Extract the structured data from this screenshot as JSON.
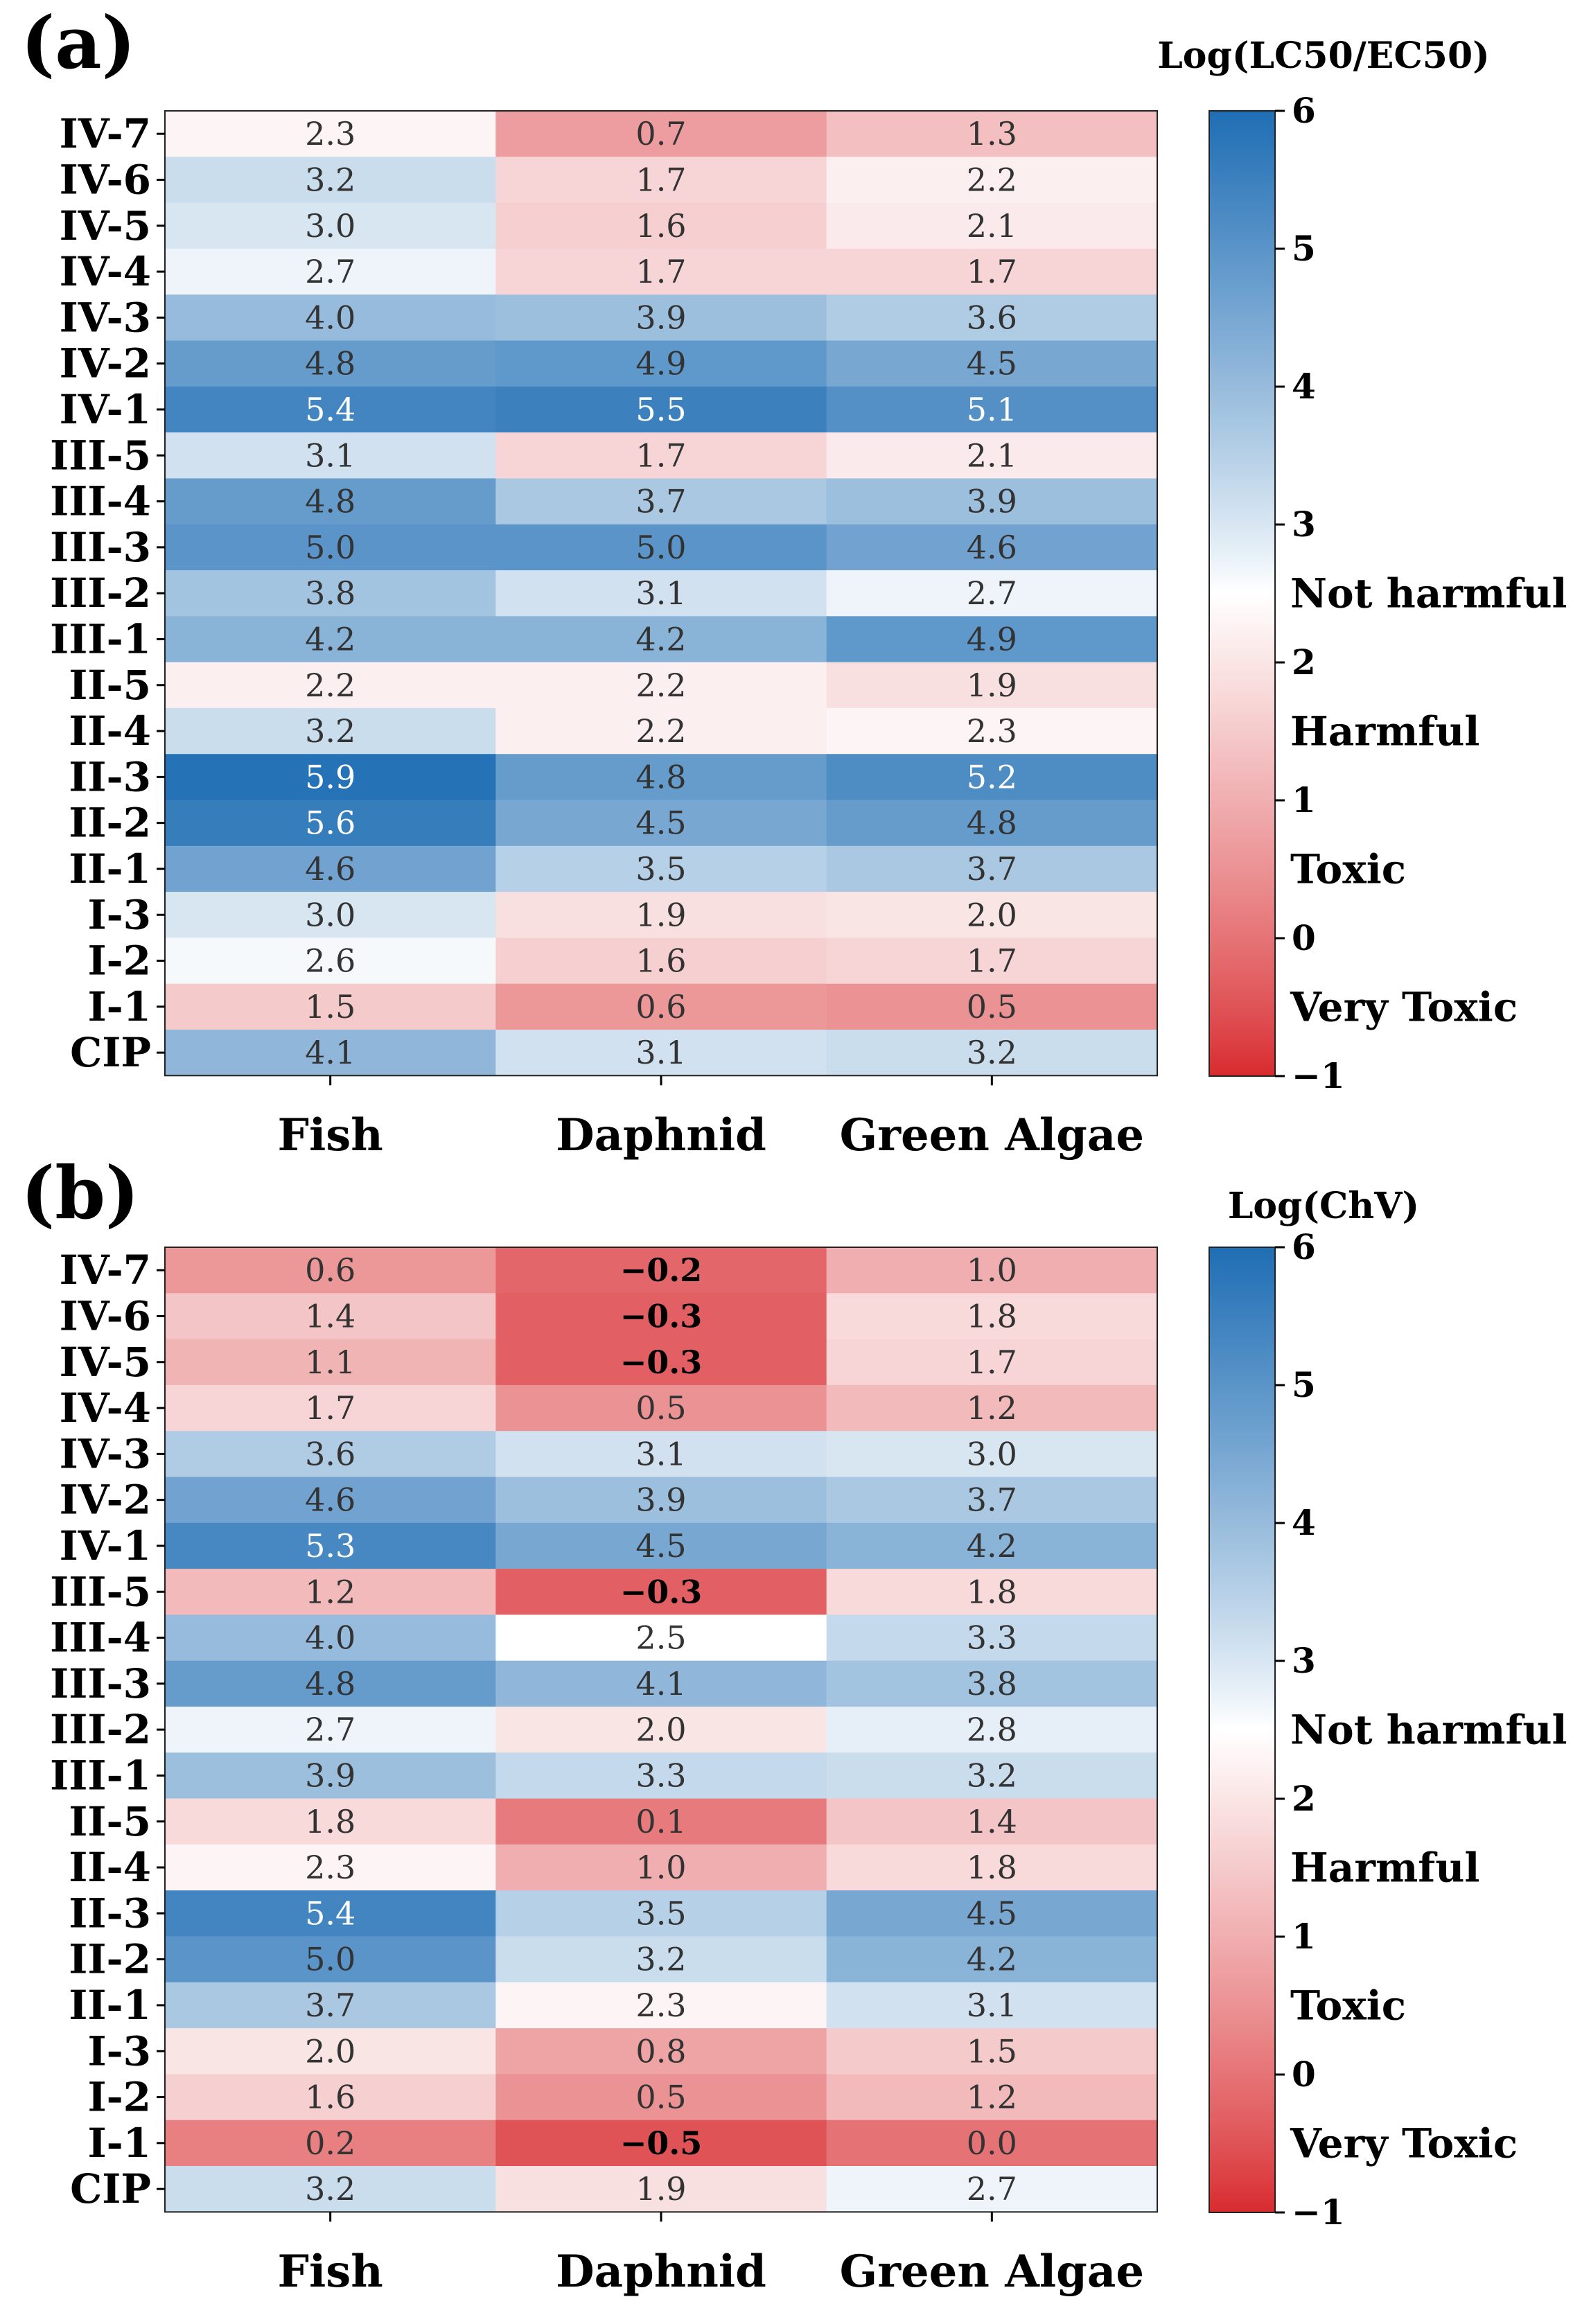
{
  "chart_data": [
    {
      "type": "heatmap",
      "panel_label": "(a)",
      "colorbar_title": "Log(LC50/EC50)",
      "columns": [
        "Fish",
        "Daphnid",
        "Green Algae"
      ],
      "rows": [
        "IV-7",
        "IV-6",
        "IV-5",
        "IV-4",
        "IV-3",
        "IV-2",
        "IV-1",
        "III-5",
        "III-4",
        "III-3",
        "III-2",
        "III-1",
        "II-5",
        "II-4",
        "II-3",
        "II-2",
        "II-1",
        "I-3",
        "I-2",
        "I-1",
        "CIP"
      ],
      "values": [
        [
          2.3,
          0.7,
          1.3
        ],
        [
          3.2,
          1.7,
          2.2
        ],
        [
          3.0,
          1.6,
          2.1
        ],
        [
          2.7,
          1.7,
          1.7
        ],
        [
          4.0,
          3.9,
          3.6
        ],
        [
          4.8,
          4.9,
          4.5
        ],
        [
          5.4,
          5.5,
          5.1
        ],
        [
          3.1,
          1.7,
          2.1
        ],
        [
          4.8,
          3.7,
          3.9
        ],
        [
          5.0,
          5.0,
          4.6
        ],
        [
          3.8,
          3.1,
          2.7
        ],
        [
          4.2,
          4.2,
          4.9
        ],
        [
          2.2,
          2.2,
          1.9
        ],
        [
          3.2,
          2.2,
          2.3
        ],
        [
          5.9,
          4.8,
          5.2
        ],
        [
          5.6,
          4.5,
          4.8
        ],
        [
          4.6,
          3.5,
          3.7
        ],
        [
          3.0,
          1.9,
          2.0
        ],
        [
          2.6,
          1.6,
          1.7
        ],
        [
          1.5,
          0.6,
          0.5
        ],
        [
          4.1,
          3.1,
          3.2
        ]
      ],
      "labels": [
        [
          "2.3",
          "0.7",
          "1.3"
        ],
        [
          "3.2",
          "1.7",
          "2.2"
        ],
        [
          "3.0",
          "1.6",
          "2.1"
        ],
        [
          "2.7",
          "1.7",
          "1.7"
        ],
        [
          "4.0",
          "3.9",
          "3.6"
        ],
        [
          "4.8",
          "4.9",
          "4.5"
        ],
        [
          "5.4",
          "5.5",
          "5.1"
        ],
        [
          "3.1",
          "1.7",
          "2.1"
        ],
        [
          "4.8",
          "3.7",
          "3.9"
        ],
        [
          "5.0",
          "5.0",
          "4.6"
        ],
        [
          "3.8",
          "3.1",
          "2.7"
        ],
        [
          "4.2",
          "4.2",
          "4.9"
        ],
        [
          "2.2",
          "2.2",
          "1.9"
        ],
        [
          "3.2",
          "2.2",
          "2.3"
        ],
        [
          "5.9",
          "4.8",
          "5.2"
        ],
        [
          "5.6",
          "4.5",
          "4.8"
        ],
        [
          "4.6",
          "3.5",
          "3.7"
        ],
        [
          "3.0",
          "1.9",
          "2.0"
        ],
        [
          "2.6",
          "1.6",
          "1.7"
        ],
        [
          "1.5",
          "0.6",
          "0.5"
        ],
        [
          "4.1",
          "3.1",
          "3.2"
        ]
      ],
      "bold_threshold": 0.0,
      "vmin": -1,
      "vmax": 6,
      "colorbar_ticks": [
        "6",
        "5",
        "4",
        "3",
        "2",
        "1",
        "0",
        "−1"
      ],
      "colorbar_tick_values": [
        6,
        5,
        4,
        3,
        2,
        1,
        0,
        -1
      ],
      "category_labels": [
        {
          "text": "Not harmful",
          "value": 2.5
        },
        {
          "text": "Harmful",
          "value": 1.5
        },
        {
          "text": "Toxic",
          "value": 0.5
        },
        {
          "text": "Very Toxic",
          "value": -0.5
        }
      ]
    },
    {
      "type": "heatmap",
      "panel_label": "(b)",
      "colorbar_title": "Log(ChV)",
      "columns": [
        "Fish",
        "Daphnid",
        "Green Algae"
      ],
      "rows": [
        "IV-7",
        "IV-6",
        "IV-5",
        "IV-4",
        "IV-3",
        "IV-2",
        "IV-1",
        "III-5",
        "III-4",
        "III-3",
        "III-2",
        "III-1",
        "II-5",
        "II-4",
        "II-3",
        "II-2",
        "II-1",
        "I-3",
        "I-2",
        "I-1",
        "CIP"
      ],
      "values": [
        [
          0.6,
          -0.2,
          1.0
        ],
        [
          1.4,
          -0.3,
          1.8
        ],
        [
          1.1,
          -0.3,
          1.7
        ],
        [
          1.7,
          0.5,
          1.2
        ],
        [
          3.6,
          3.1,
          3.0
        ],
        [
          4.6,
          3.9,
          3.7
        ],
        [
          5.3,
          4.5,
          4.2
        ],
        [
          1.2,
          -0.3,
          1.8
        ],
        [
          4.0,
          2.5,
          3.3
        ],
        [
          4.8,
          4.1,
          3.8
        ],
        [
          2.7,
          2.0,
          2.8
        ],
        [
          3.9,
          3.3,
          3.2
        ],
        [
          1.8,
          0.1,
          1.4
        ],
        [
          2.3,
          1.0,
          1.8
        ],
        [
          5.4,
          3.5,
          4.5
        ],
        [
          5.0,
          3.2,
          4.2
        ],
        [
          3.7,
          2.3,
          3.1
        ],
        [
          2.0,
          0.8,
          1.5
        ],
        [
          1.6,
          0.5,
          1.2
        ],
        [
          0.2,
          -0.5,
          0.0
        ],
        [
          3.2,
          1.9,
          2.7
        ]
      ],
      "labels": [
        [
          "0.6",
          "−0.2",
          "1.0"
        ],
        [
          "1.4",
          "−0.3",
          "1.8"
        ],
        [
          "1.1",
          "−0.3",
          "1.7"
        ],
        [
          "1.7",
          "0.5",
          "1.2"
        ],
        [
          "3.6",
          "3.1",
          "3.0"
        ],
        [
          "4.6",
          "3.9",
          "3.7"
        ],
        [
          "5.3",
          "4.5",
          "4.2"
        ],
        [
          "1.2",
          "−0.3",
          "1.8"
        ],
        [
          "4.0",
          "2.5",
          "3.3"
        ],
        [
          "4.8",
          "4.1",
          "3.8"
        ],
        [
          "2.7",
          "2.0",
          "2.8"
        ],
        [
          "3.9",
          "3.3",
          "3.2"
        ],
        [
          "1.8",
          "0.1",
          "1.4"
        ],
        [
          "2.3",
          "1.0",
          "1.8"
        ],
        [
          "5.4",
          "3.5",
          "4.5"
        ],
        [
          "5.0",
          "3.2",
          "4.2"
        ],
        [
          "3.7",
          "2.3",
          "3.1"
        ],
        [
          "2.0",
          "0.8",
          "1.5"
        ],
        [
          "1.6",
          "0.5",
          "1.2"
        ],
        [
          "0.2",
          "−0.5",
          "0.0"
        ],
        [
          "3.2",
          "1.9",
          "2.7"
        ]
      ],
      "bold_threshold": 0.0,
      "vmin": -1,
      "vmax": 6,
      "colorbar_ticks": [
        "6",
        "5",
        "4",
        "3",
        "2",
        "1",
        "0",
        "−1"
      ],
      "colorbar_tick_values": [
        6,
        5,
        4,
        3,
        2,
        1,
        0,
        -1
      ],
      "category_labels": [
        {
          "text": "Not harmful",
          "value": 2.5
        },
        {
          "text": "Harmful",
          "value": 1.5
        },
        {
          "text": "Toxic",
          "value": 0.5
        },
        {
          "text": "Very Toxic",
          "value": -0.5
        }
      ]
    }
  ],
  "colors": {
    "very_toxic": "#d82a2e",
    "neutral": "#ffffff",
    "nontoxic": "#1f6eb4",
    "axis": "#000000",
    "cell_text_dark": "#333333",
    "cell_text_light": "#ffffff"
  }
}
